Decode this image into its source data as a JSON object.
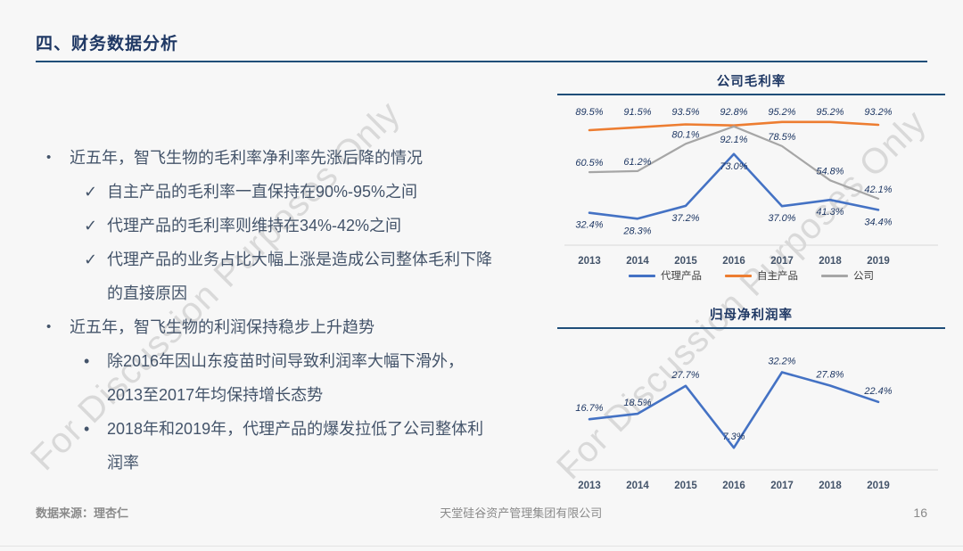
{
  "slide": {
    "title": "四、财务数据分析",
    "watermark_text": "For Discussion Purposes Only",
    "colors": {
      "accent_navy": "#1F3864",
      "rule_blue": "#1F4E79",
      "body_text": "#44546A",
      "series_blue": "#4472C4",
      "series_orange": "#ED7D31",
      "series_gray": "#A6A6A6",
      "axis_gray": "#D9D9D9",
      "footer_gray": "#8A8A8A"
    },
    "bullets": [
      {
        "level": 1,
        "marker": "•",
        "text": "近五年，智飞生物的毛利率净利率先涨后降的情况"
      },
      {
        "level": 2,
        "marker": "✓",
        "text": "自主产品的毛利率一直保持在90%-95%之间"
      },
      {
        "level": 2,
        "marker": "✓",
        "text": "代理产品的毛利率则维持在34%-42%之间"
      },
      {
        "level": 2,
        "marker": "✓",
        "text": "代理产品的业务占比大幅上涨是造成公司整体毛利下降\n的直接原因"
      },
      {
        "level": 1,
        "marker": "•",
        "text": "近五年，智飞生物的利润保持稳步上升趋势"
      },
      {
        "level": 2,
        "marker": "•",
        "text": "除2016年因山东疫苗时间导致利润率大幅下滑外，\n2013至2017年均保持增长态势"
      },
      {
        "level": 2,
        "marker": "•",
        "text": "2018年和2019年，代理产品的爆发拉低了公司整体利\n润率"
      }
    ],
    "footer": {
      "source": "数据来源：理杏仁",
      "company": "天堂硅谷资产管理集团有限公司",
      "page": "16"
    }
  },
  "chart_data": [
    {
      "type": "line",
      "title": "公司毛利率",
      "categories": [
        "2013",
        "2014",
        "2015",
        "2016",
        "2017",
        "2018",
        "2019"
      ],
      "series": [
        {
          "name": "代理产品",
          "color": "#4472C4",
          "values": [
            32.4,
            28.3,
            37.2,
            73.0,
            37.0,
            41.3,
            34.4
          ]
        },
        {
          "name": "自主产品",
          "color": "#ED7D31",
          "values": [
            89.5,
            91.5,
            93.5,
            92.8,
            95.2,
            95.2,
            93.2
          ]
        },
        {
          "name": "公司",
          "color": "#A6A6A6",
          "values": [
            60.5,
            61.2,
            80.1,
            92.1,
            78.5,
            54.8,
            42.1
          ]
        }
      ],
      "ylim": [
        10,
        100
      ],
      "xlabel": "",
      "ylabel": "",
      "grid": false,
      "legend_position": "bottom",
      "data_labels": true
    },
    {
      "type": "line",
      "title": "归母净利润率",
      "categories": [
        "2013",
        "2014",
        "2015",
        "2016",
        "2017",
        "2018",
        "2019"
      ],
      "series": [
        {
          "name": "归母净利润率",
          "color": "#4472C4",
          "values": [
            16.7,
            18.5,
            27.7,
            7.3,
            32.2,
            27.8,
            22.4
          ]
        }
      ],
      "ylim": [
        0,
        40
      ],
      "xlabel": "",
      "ylabel": "",
      "grid": false,
      "legend_position": "none",
      "data_labels": true
    }
  ]
}
